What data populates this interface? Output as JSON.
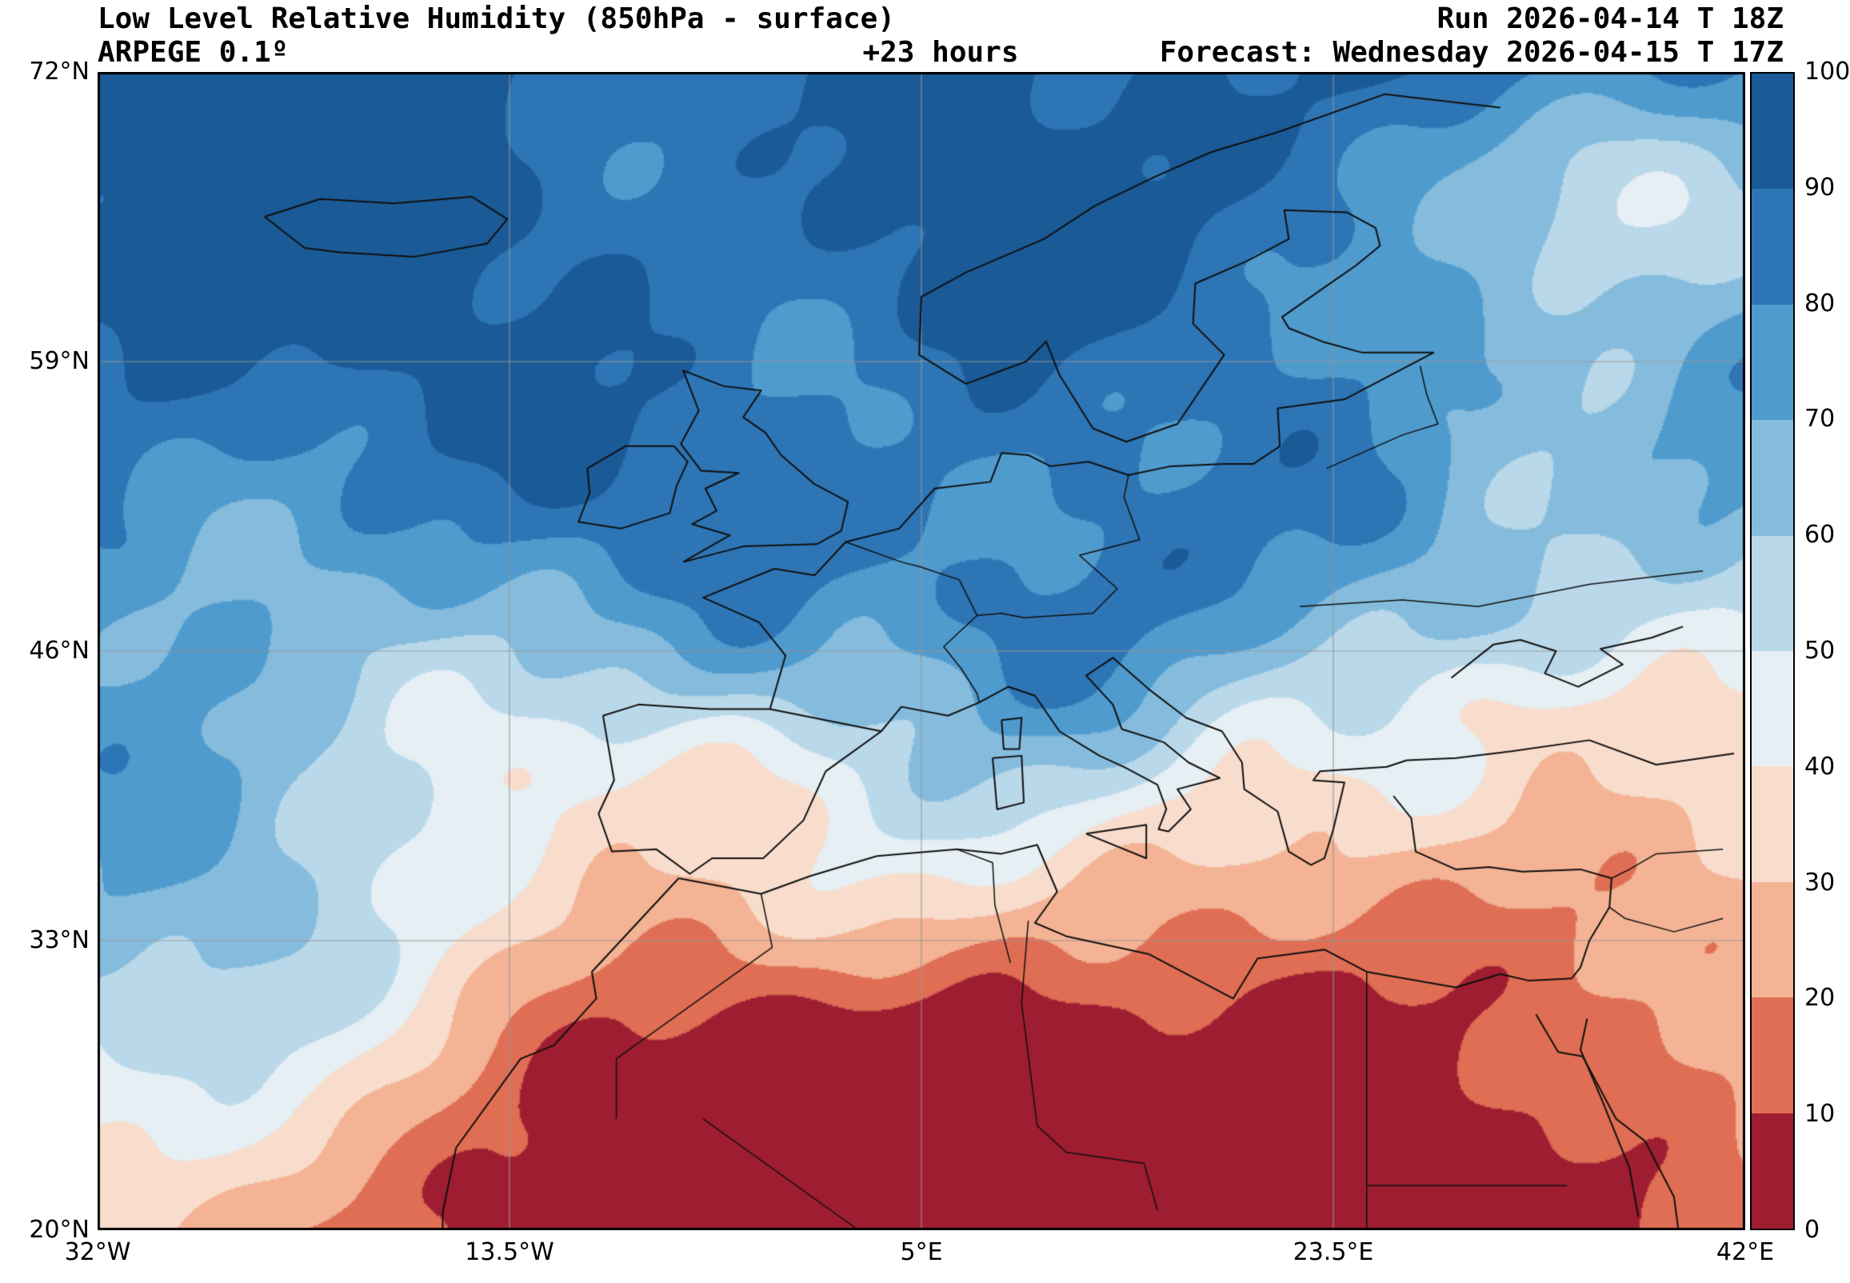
{
  "header": {
    "title": "Low Level Relative Humidity (850hPa - surface)",
    "model": "ARPEGE 0.1º",
    "lead_time": "+23 hours",
    "run": "Run 2026-04-14 T 18Z",
    "forecast": "Forecast: Wednesday 2026-04-15 T 17Z"
  },
  "axes": {
    "lat_ticks": [
      "72°N",
      "59°N",
      "46°N",
      "33°N",
      "20°N"
    ],
    "lon_ticks": [
      "32°W",
      "13.5°W",
      "5°E",
      "23.5°E",
      "42°E"
    ]
  },
  "colorbar": {
    "ticks": [
      "100",
      "90",
      "80",
      "70",
      "60",
      "50",
      "40",
      "30",
      "20",
      "10",
      "0"
    ],
    "colors": [
      "#1a5a96",
      "#2e75b5",
      "#4f9bcd",
      "#85bcdd",
      "#b9d8ea",
      "#e6eff4",
      "#f8ddcd",
      "#f3b394",
      "#df6e54",
      "#9e1d30"
    ]
  },
  "chart_data": {
    "type": "heatmap",
    "title": "Low Level Relative Humidity (850hPa - surface)",
    "model": "ARPEGE 0.1º",
    "run": "2026-04-14 T 18Z",
    "forecast_valid": "Wednesday 2026-04-15 T 17Z",
    "lead_hours": 23,
    "value_range": [
      0,
      100
    ],
    "levels": [
      0,
      10,
      20,
      30,
      40,
      50,
      60,
      70,
      80,
      90,
      100
    ],
    "lon_range_deg": [
      -32,
      42
    ],
    "lat_range_deg": [
      20,
      72
    ],
    "legend_position": "right",
    "grid": true
  }
}
